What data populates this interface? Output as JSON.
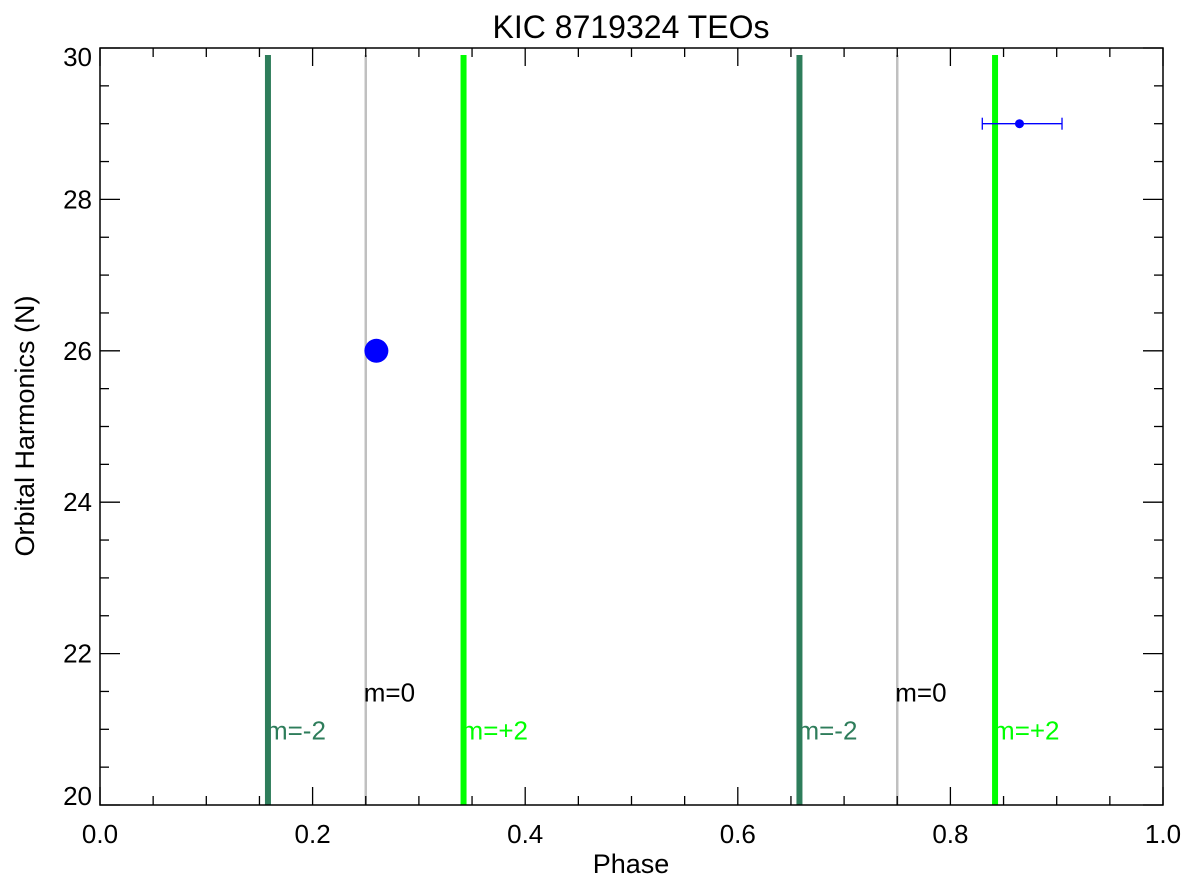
{
  "chart_data": {
    "type": "scatter",
    "title": "KIC 8719324 TEOs",
    "xlabel": "Phase",
    "ylabel": "Orbital Harmonics (N)",
    "xlim": [
      0.0,
      1.0
    ],
    "ylim": [
      20,
      30
    ],
    "x_ticks": [
      0.0,
      0.2,
      0.4,
      0.6,
      0.8,
      1.0
    ],
    "x_tick_labels": [
      "0.0",
      "0.2",
      "0.4",
      "0.6",
      "0.8",
      "1.0"
    ],
    "y_ticks": [
      20,
      22,
      24,
      26,
      28,
      30
    ],
    "y_tick_labels": [
      "20",
      "22",
      "24",
      "26",
      "28",
      "30"
    ],
    "grid": false,
    "points": [
      {
        "x": 0.26,
        "y": 26,
        "marker": "large-dot",
        "color": "#0000ff"
      },
      {
        "x": 0.865,
        "y": 29,
        "xerr": [
          0.83,
          0.905
        ],
        "marker": "small-dot",
        "color": "#0000ff"
      }
    ],
    "vertical_lines": [
      {
        "x": 0.158,
        "label": "m=-2",
        "color": "#2e7d5b",
        "label_y": 21.0
      },
      {
        "x": 0.25,
        "label": "m=0",
        "color": "#c0c0c0",
        "label_color": "#000000",
        "label_y": 21.5
      },
      {
        "x": 0.342,
        "label": "m=+2",
        "color": "#00ff00",
        "label_y": 21.0
      },
      {
        "x": 0.658,
        "label": "m=-2",
        "color": "#2e7d5b",
        "label_y": 21.0
      },
      {
        "x": 0.75,
        "label": "m=0",
        "color": "#c0c0c0",
        "label_color": "#000000",
        "label_y": 21.5
      },
      {
        "x": 0.842,
        "label": "m=+2",
        "color": "#00ff00",
        "label_y": 21.0
      }
    ]
  }
}
